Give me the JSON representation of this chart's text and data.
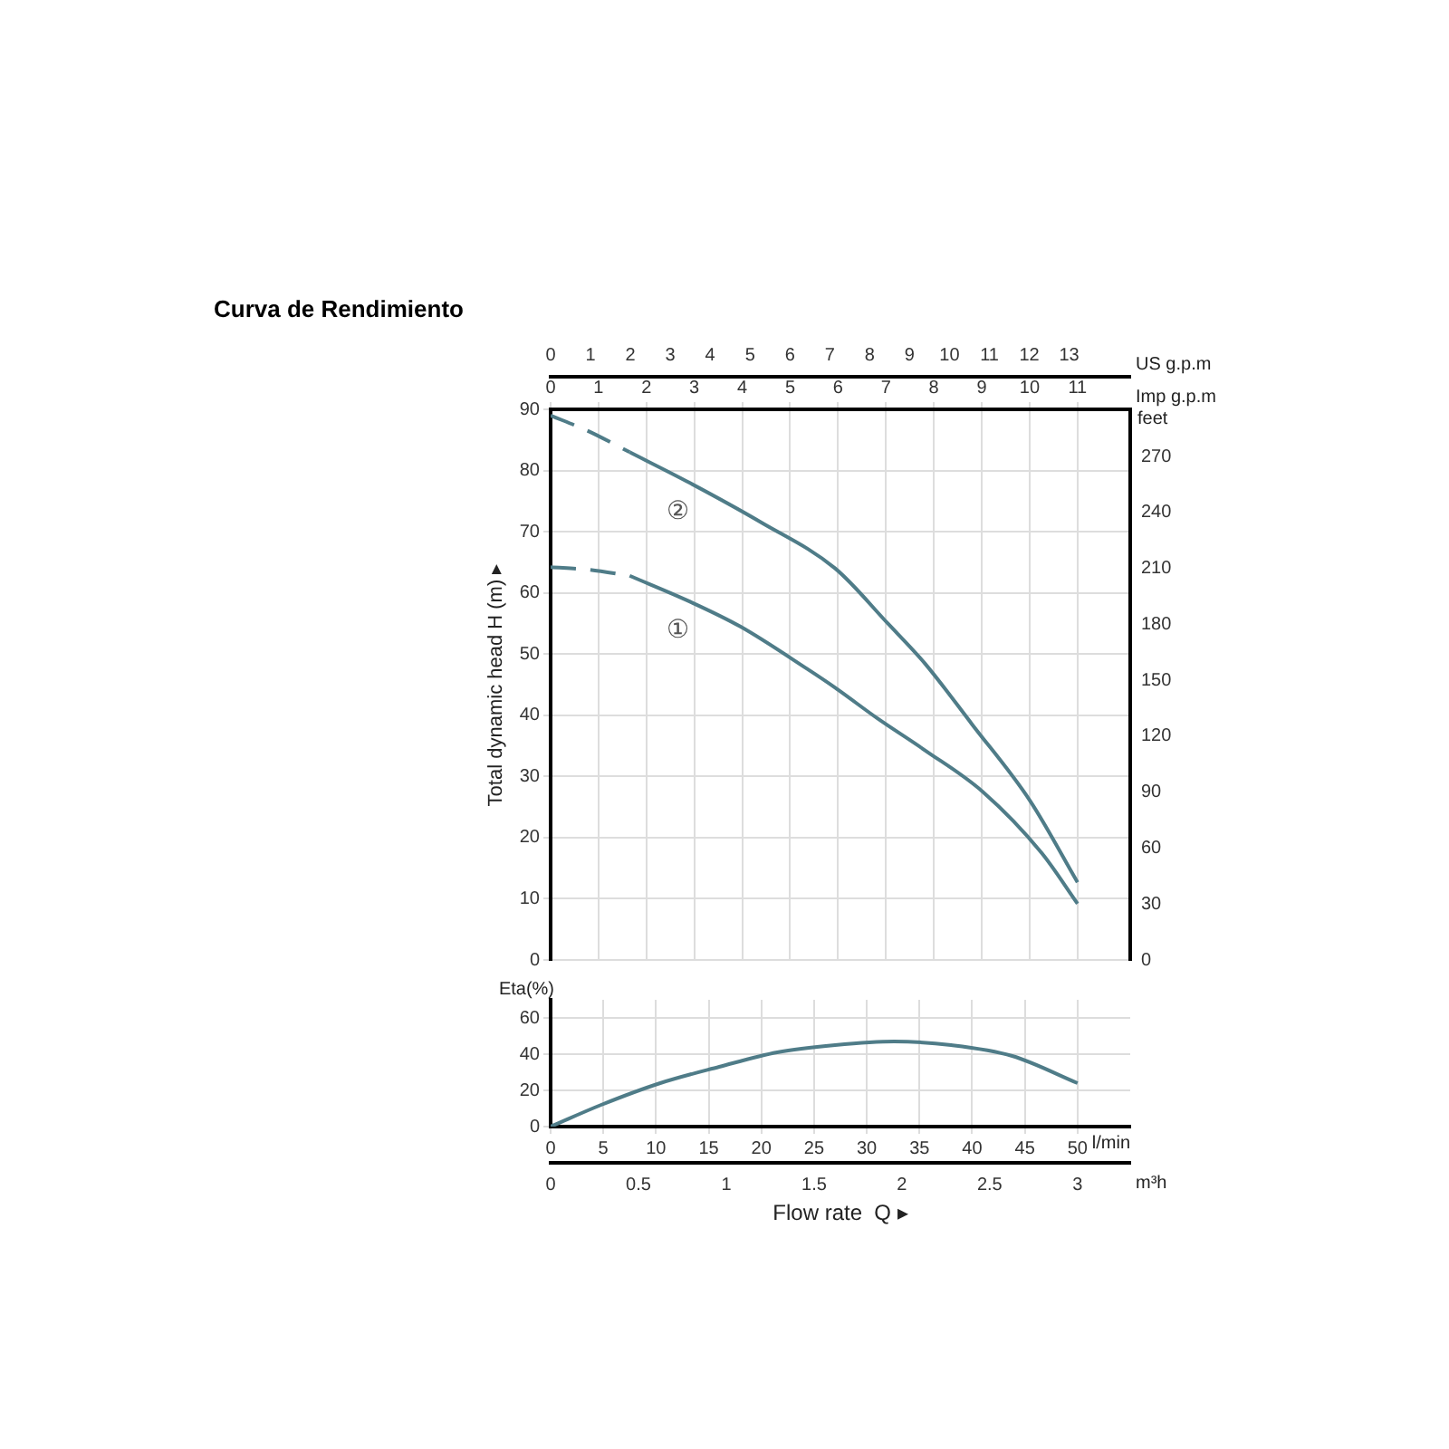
{
  "chart_data": [
    {
      "type": "line",
      "title": "Curva de Rendimiento",
      "ylabel": "Total dynamic head H (m) ▸",
      "y2label": "feet",
      "x2label": "US g.p.m",
      "xlabel": "Imp g.p.m",
      "xlim": [
        0,
        12.1
      ],
      "xticks": [
        0,
        1,
        2,
        3,
        4,
        5,
        6,
        7,
        8,
        9,
        10,
        11
      ],
      "x2lim": [
        0,
        14.53
      ],
      "x2ticks": [
        0,
        1,
        2,
        3,
        4,
        5,
        6,
        7,
        8,
        9,
        10,
        11,
        12,
        13
      ],
      "ylim": [
        0,
        90
      ],
      "yticks": [
        0,
        10,
        20,
        30,
        40,
        50,
        60,
        70,
        80,
        90
      ],
      "y2lim": [
        0,
        295.3
      ],
      "y2ticks": [
        0,
        30,
        60,
        90,
        120,
        150,
        180,
        210,
        240,
        270
      ],
      "grid": true,
      "marker": "none",
      "series": [
        {
          "color": "#4f7c88",
          "line_style": "dashed",
          "x": [
            0,
            0.77,
            1.65
          ],
          "values": [
            64.2,
            63.8,
            62.8
          ]
        },
        {
          "name": "①",
          "color": "#4f7c88",
          "line_style": "solid",
          "x": [
            1.65,
            2.9,
            3.96,
            5.35,
            5.94,
            6.82,
            7.81,
            9.02,
            10.25,
            11.0
          ],
          "values": [
            62.8,
            58.6,
            54.5,
            47.6,
            44.5,
            39.5,
            34.3,
            27.5,
            17.5,
            9.2
          ]
        },
        {
          "color": "#4f7c88",
          "line_style": "dashed",
          "x": [
            0,
            0.77,
            1.65
          ],
          "values": [
            89,
            86.5,
            83
          ]
        },
        {
          "name": "②",
          "color": "#4f7c88",
          "line_style": "solid",
          "x": [
            1.65,
            2.9,
            4.4,
            5.94,
            7.04,
            7.81,
            8.8,
            10.01,
            11.0
          ],
          "values": [
            83,
            78,
            71.5,
            64,
            55,
            48.5,
            38.5,
            26,
            12.7
          ]
        }
      ]
    },
    {
      "type": "line",
      "ylabel": "Eta(%)",
      "xlabel": "Flow rate  Q ▸",
      "x2label": "m³h",
      "annotations": [
        "l/min"
      ],
      "xlim": [
        0,
        55
      ],
      "xticks": [
        0,
        5,
        10,
        15,
        20,
        25,
        30,
        35,
        40,
        45,
        50
      ],
      "x2lim": [
        0,
        3.3
      ],
      "x2ticks": [
        0,
        0.5,
        1,
        1.5,
        2,
        2.5,
        3
      ],
      "ylim": [
        0,
        70
      ],
      "yticks": [
        0,
        20,
        40,
        60
      ],
      "grid": true,
      "marker": "none",
      "series": [
        {
          "color": "#4f7c88",
          "line_style": "solid",
          "x": [
            0,
            4.8,
            10.4,
            16,
            21.5,
            27,
            32.6,
            38,
            43.8,
            50
          ],
          "values": [
            0,
            12,
            24,
            33,
            41,
            45,
            47,
            45,
            39,
            24
          ]
        }
      ]
    }
  ]
}
